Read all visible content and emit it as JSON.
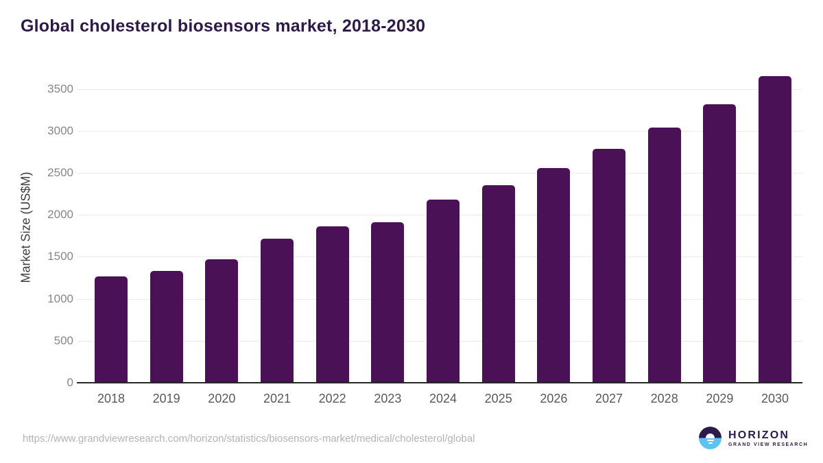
{
  "title": "Global cholesterol biosensors market, 2018-2030",
  "source_url": "https://www.grandviewresearch.com/horizon/statistics/biosensors-market/medical/cholesterol/global",
  "logo": {
    "name": "HORIZON",
    "subtitle": "GRAND VIEW RESEARCH"
  },
  "colors": {
    "bar": "#4a1157",
    "title": "#2e1a47",
    "axis": "#262626",
    "grid": "#e9e9e9",
    "ytick": "#868686",
    "xtick": "#58585a",
    "url": "#b3b3b3",
    "logo_dark": "#2b1a4a",
    "logo_blue": "#5ec3f0"
  },
  "chart_data": {
    "type": "bar",
    "title": "Global cholesterol biosensors market, 2018-2030",
    "categories": [
      "2018",
      "2019",
      "2020",
      "2021",
      "2022",
      "2023",
      "2024",
      "2025",
      "2026",
      "2027",
      "2028",
      "2029",
      "2030"
    ],
    "values": [
      1270,
      1335,
      1475,
      1720,
      1860,
      1910,
      2185,
      2355,
      2560,
      2785,
      3040,
      3320,
      3655
    ],
    "xlabel": "",
    "ylabel": "Market Size (US$M)",
    "ylim": [
      0,
      3700
    ],
    "yticks": [
      0,
      500,
      1000,
      1500,
      2000,
      2500,
      3000,
      3500
    ],
    "grid": true,
    "legend": "none",
    "bar_color": "#4a1157"
  }
}
